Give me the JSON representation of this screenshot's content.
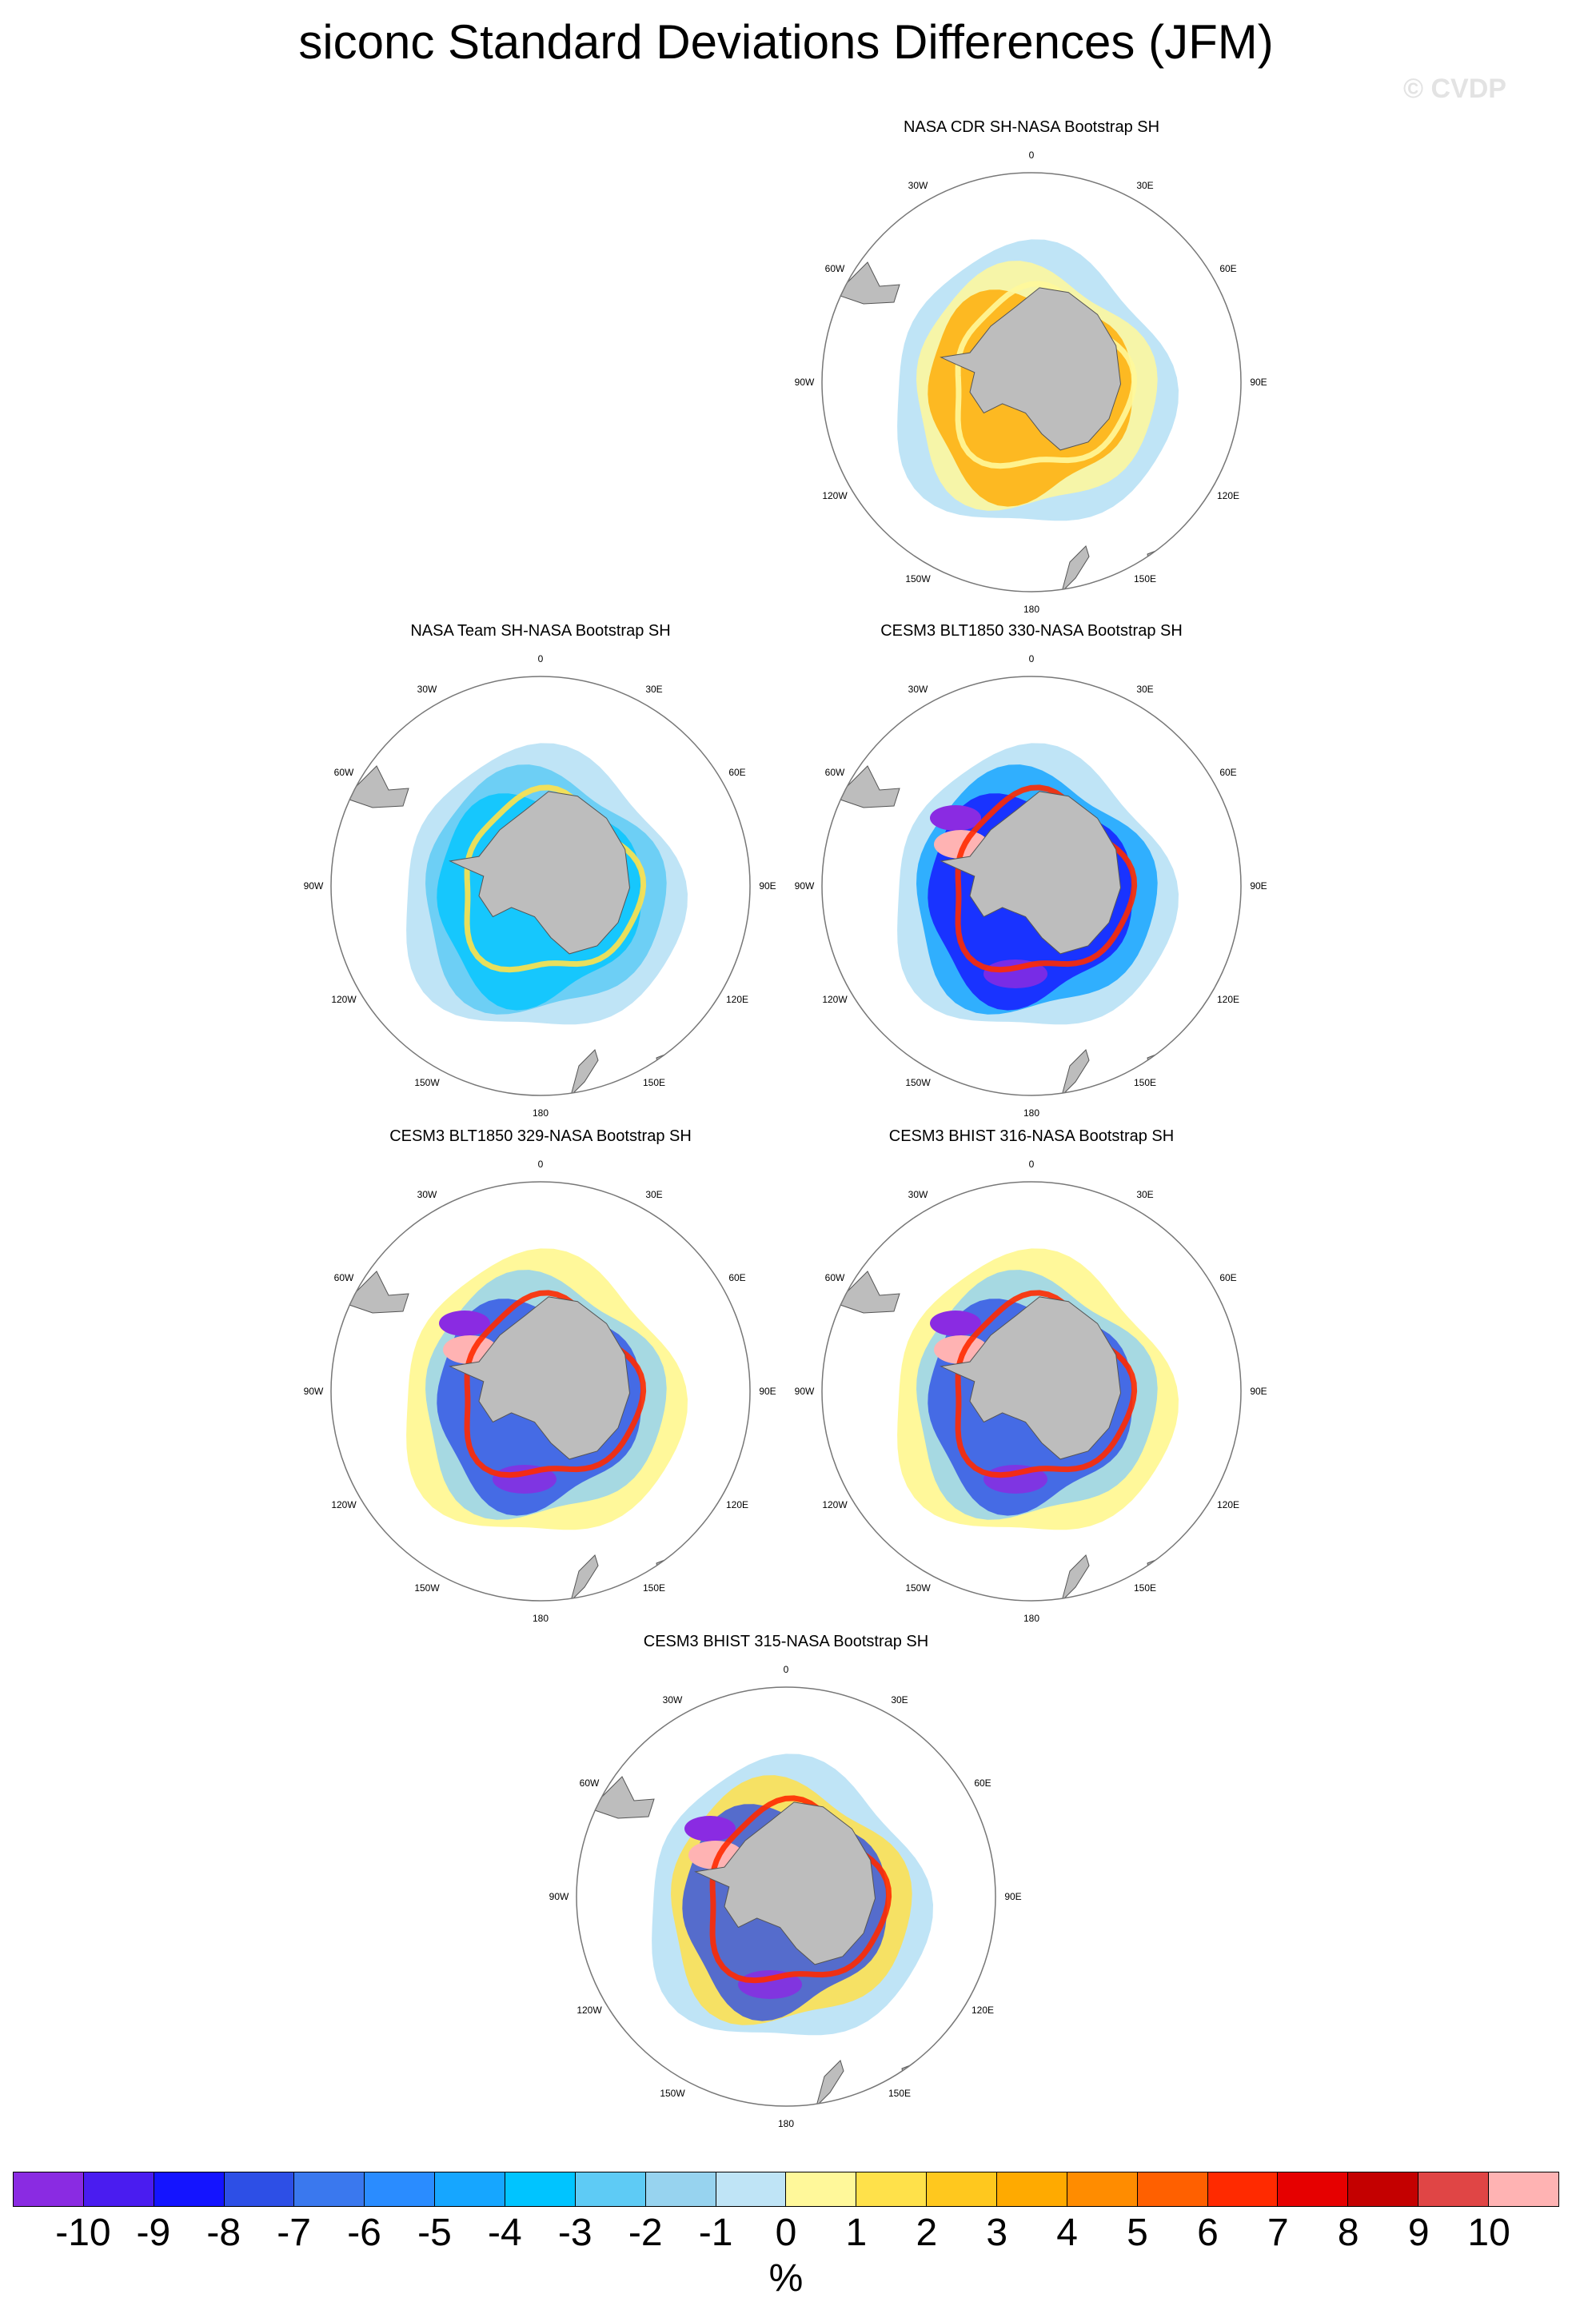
{
  "title": "siconc Standard Deviations Differences (JFM)",
  "watermark": "© CVDP",
  "longitude_labels": [
    "0",
    "30E",
    "60E",
    "90E",
    "120E",
    "150E",
    "180",
    "150W",
    "120W",
    "90W",
    "60W",
    "30W"
  ],
  "panels": [
    {
      "title": "NASA CDR SH-NASA Bootstrap SH"
    },
    {
      "title": "NASA Team SH-NASA Bootstrap SH"
    },
    {
      "title": "CESM3 BLT1850 330-NASA Bootstrap SH"
    },
    {
      "title": "CESM3 BLT1850 329-NASA Bootstrap SH"
    },
    {
      "title": "CESM3 BHIST 316-NASA Bootstrap SH"
    },
    {
      "title": "CESM3 BHIST 315-NASA Bootstrap SH"
    }
  ],
  "colorbar": {
    "colors": [
      "#8a2be2",
      "#4a1cf0",
      "#1414ff",
      "#2d4fe6",
      "#3a78ee",
      "#2a8cff",
      "#16a6ff",
      "#00c4ff",
      "#5ecbf5",
      "#97d3ef",
      "#bfe4f6",
      "#fff89a",
      "#ffe14a",
      "#ffc81e",
      "#ffaa00",
      "#ff8c00",
      "#ff6000",
      "#ff2a00",
      "#e60000",
      "#c40000",
      "#e04545",
      "#ffb3b3"
    ],
    "ticks": [
      "-10",
      "-9",
      "-8",
      "-7",
      "-6",
      "-5",
      "-4",
      "-3",
      "-2",
      "-1",
      "0",
      "1",
      "2",
      "3",
      "4",
      "5",
      "6",
      "7",
      "8",
      "9",
      "10"
    ],
    "unit": "%"
  }
}
